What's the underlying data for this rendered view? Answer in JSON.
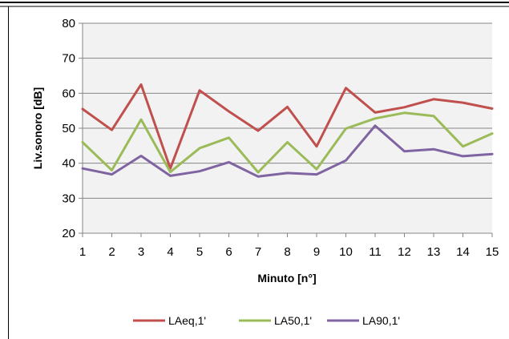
{
  "chart_data": {
    "type": "line",
    "title": "",
    "xlabel": "Minuto [n°]",
    "ylabel": "Liv.sonoro [dB]",
    "ylim": [
      20,
      80
    ],
    "yticks": [
      20,
      30,
      40,
      50,
      60,
      70,
      80
    ],
    "x": [
      1,
      2,
      3,
      4,
      5,
      6,
      7,
      8,
      9,
      10,
      11,
      12,
      13,
      14,
      15
    ],
    "grid": true,
    "legend_position": "bottom",
    "series": [
      {
        "name": "LAeq,1'",
        "color": "#c0504d",
        "values": [
          55.5,
          49.5,
          62.5,
          38.5,
          60.8,
          54.8,
          49.3,
          56.1,
          44.8,
          61.5,
          54.5,
          56.0,
          58.3,
          57.3,
          55.6
        ]
      },
      {
        "name": "LA50,1'",
        "color": "#9bbb59",
        "values": [
          46.0,
          38.0,
          52.5,
          37.5,
          44.3,
          47.3,
          37.4,
          46.0,
          38.3,
          49.9,
          52.8,
          54.4,
          53.5,
          44.8,
          48.5
        ]
      },
      {
        "name": "LA90,1'",
        "color": "#8064a2",
        "values": [
          38.5,
          36.8,
          42.1,
          36.4,
          37.7,
          40.3,
          36.2,
          37.2,
          36.8,
          40.8,
          50.7,
          43.4,
          44.0,
          42.0,
          42.6
        ]
      }
    ]
  }
}
